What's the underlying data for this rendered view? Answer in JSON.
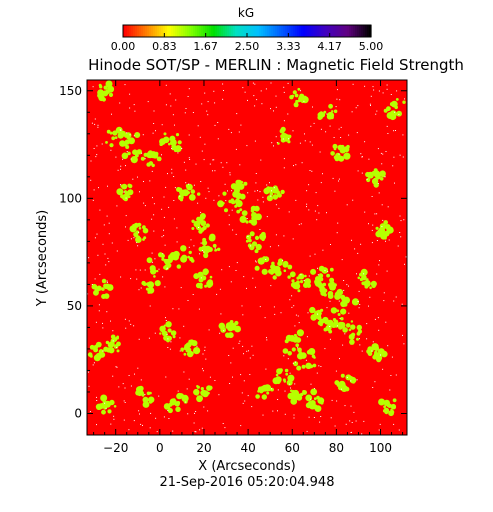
{
  "chart_data": {
    "type": "heatmap",
    "title": "Hinode SOT/SP - MERLIN : Magnetic Field Strength",
    "xlabel": "X (Arcseconds)",
    "ylabel": "Y (Arcseconds)",
    "timestamp": "21-Sep-2016 05:20:04.948",
    "xlim": [
      -33,
      112
    ],
    "ylim": [
      -10,
      155
    ],
    "x_ticks": [
      -20,
      0,
      20,
      40,
      60,
      80,
      100
    ],
    "y_ticks": [
      0,
      50,
      100,
      150
    ],
    "grid": false,
    "colorbar": {
      "label": "kG",
      "range": [
        0.0,
        5.0
      ],
      "ticks": [
        "0.00",
        "0.83",
        "1.67",
        "2.50",
        "3.33",
        "4.17",
        "5.00"
      ],
      "placement": "top",
      "colormap": [
        "#ff0000",
        "#ff7f00",
        "#ffff00",
        "#7fff00",
        "#00e000",
        "#00e0c0",
        "#00c0ff",
        "#0060ff",
        "#0000ff",
        "#4000c0",
        "#600080",
        "#000000"
      ]
    },
    "background_value_kG": 0.1,
    "background_color": "#ff0000",
    "strong_field_color": "#b6ff00",
    "speckle_color": "#ffffff",
    "strong_field_regions": [
      {
        "x": -25,
        "y": 150,
        "r": 4
      },
      {
        "x": -20,
        "y": 128,
        "r": 5
      },
      {
        "x": -12,
        "y": 124,
        "r": 6
      },
      {
        "x": -4,
        "y": 118,
        "r": 4
      },
      {
        "x": 5,
        "y": 126,
        "r": 5
      },
      {
        "x": -15,
        "y": 103,
        "r": 4
      },
      {
        "x": 13,
        "y": 103,
        "r": 5
      },
      {
        "x": 18,
        "y": 88,
        "r": 4
      },
      {
        "x": 22,
        "y": 78,
        "r": 5
      },
      {
        "x": 32,
        "y": 99,
        "r": 5
      },
      {
        "x": 36,
        "y": 104,
        "r": 4
      },
      {
        "x": 40,
        "y": 93,
        "r": 5
      },
      {
        "x": 44,
        "y": 80,
        "r": 5
      },
      {
        "x": 52,
        "y": 102,
        "r": 4
      },
      {
        "x": 48,
        "y": 68,
        "r": 4
      },
      {
        "x": 56,
        "y": 66,
        "r": 5
      },
      {
        "x": 64,
        "y": 61,
        "r": 4
      },
      {
        "x": 74,
        "y": 64,
        "r": 5
      },
      {
        "x": 76,
        "y": 58,
        "r": 4
      },
      {
        "x": 84,
        "y": 51,
        "r": 6
      },
      {
        "x": 86,
        "y": 38,
        "r": 5
      },
      {
        "x": 78,
        "y": 42,
        "r": 5
      },
      {
        "x": 72,
        "y": 46,
        "r": 4
      },
      {
        "x": 60,
        "y": 33,
        "r": 6
      },
      {
        "x": 66,
        "y": 25,
        "r": 5
      },
      {
        "x": 56,
        "y": 17,
        "r": 4
      },
      {
        "x": 62,
        "y": 8,
        "r": 4
      },
      {
        "x": 70,
        "y": 6,
        "r": 4
      },
      {
        "x": 48,
        "y": 9,
        "r": 4
      },
      {
        "x": -10,
        "y": 84,
        "r": 4
      },
      {
        "x": -4,
        "y": 60,
        "r": 4
      },
      {
        "x": 0,
        "y": 70,
        "r": 5
      },
      {
        "x": 10,
        "y": 72,
        "r": 5
      },
      {
        "x": 20,
        "y": 62,
        "r": 4
      },
      {
        "x": 4,
        "y": 38,
        "r": 4
      },
      {
        "x": -20,
        "y": 32,
        "r": 4
      },
      {
        "x": 32,
        "y": 40,
        "r": 4
      },
      {
        "x": 14,
        "y": 30,
        "r": 4
      },
      {
        "x": 20,
        "y": 10,
        "r": 4
      },
      {
        "x": -24,
        "y": 4,
        "r": 4
      },
      {
        "x": -7,
        "y": 8,
        "r": 4
      },
      {
        "x": 8,
        "y": 4,
        "r": 5
      },
      {
        "x": 94,
        "y": 62,
        "r": 4
      },
      {
        "x": 102,
        "y": 85,
        "r": 4
      },
      {
        "x": 98,
        "y": 110,
        "r": 4
      },
      {
        "x": 107,
        "y": 142,
        "r": 5
      },
      {
        "x": 76,
        "y": 139,
        "r": 4
      },
      {
        "x": 62,
        "y": 147,
        "r": 4
      },
      {
        "x": 56,
        "y": 128,
        "r": 4
      },
      {
        "x": 82,
        "y": 122,
        "r": 4
      },
      {
        "x": 98,
        "y": 28,
        "r": 4
      },
      {
        "x": 104,
        "y": 4,
        "r": 4
      },
      {
        "x": 84,
        "y": 14,
        "r": 4
      },
      {
        "x": -28,
        "y": 28,
        "r": 4
      },
      {
        "x": -26,
        "y": 58,
        "r": 4
      }
    ]
  }
}
